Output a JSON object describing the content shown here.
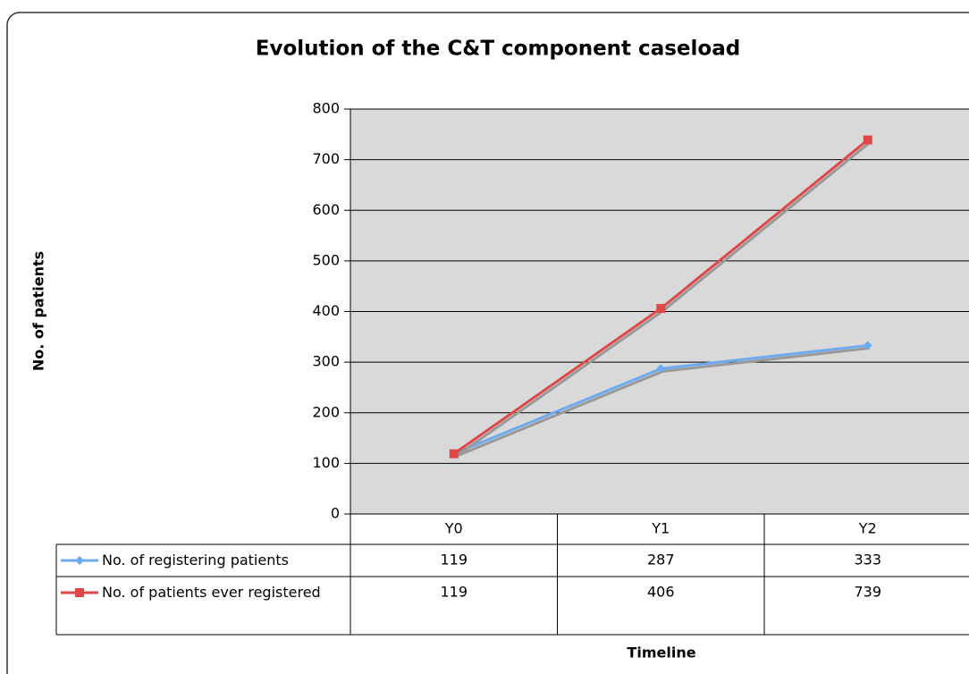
{
  "chart_data": {
    "type": "line",
    "title": "Evolution of the C&T component caseload",
    "y_label": "No. of patients",
    "x_label": "Timeline",
    "categories": [
      "Y0",
      "Y1",
      "Y2"
    ],
    "series": [
      {
        "name": "No. of registering patients",
        "color": "#6eaaf0",
        "marker": "diamond",
        "values": [
          119,
          287,
          333
        ]
      },
      {
        "name": "No. of patients ever registered",
        "color": "#e04848",
        "marker": "square",
        "values": [
          119,
          406,
          739
        ]
      }
    ],
    "ylim": [
      0,
      800
    ],
    "yticks": [
      0,
      100,
      200,
      300,
      400,
      500,
      600,
      700,
      800
    ],
    "grid": true,
    "data_table": true
  }
}
